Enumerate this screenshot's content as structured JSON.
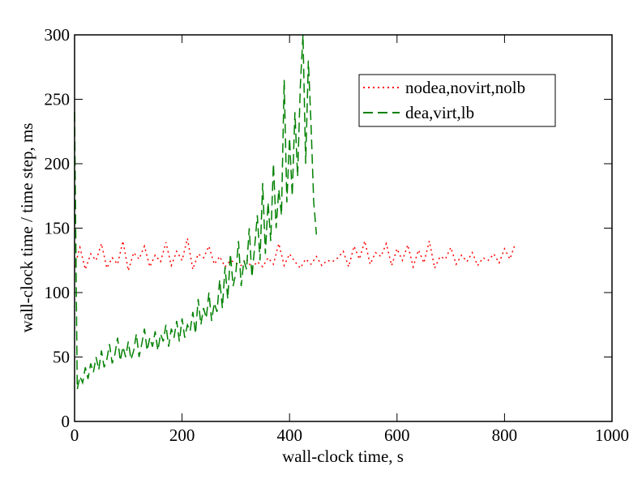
{
  "chart_data": {
    "type": "line",
    "xlabel": "wall-clock time, s",
    "ylabel": "wall-clock time / time step, ms",
    "xlim": [
      0,
      1000
    ],
    "xticks": [
      0,
      200,
      400,
      600,
      800,
      1000
    ],
    "ylim": [
      0,
      300
    ],
    "yticks": [
      0,
      50,
      100,
      150,
      200,
      250,
      300
    ],
    "legend": "upper right",
    "series": [
      {
        "name": "nodea,novirt,nolb",
        "color": "#ff0000",
        "dash": "dotted",
        "x": [
          0,
          10,
          20,
          30,
          40,
          50,
          60,
          70,
          80,
          90,
          100,
          110,
          120,
          130,
          140,
          150,
          160,
          170,
          180,
          190,
          200,
          210,
          220,
          230,
          240,
          250,
          260,
          270,
          280,
          290,
          300,
          310,
          320,
          330,
          340,
          350,
          360,
          370,
          380,
          390,
          400,
          410,
          420,
          430,
          440,
          450,
          460,
          470,
          480,
          490,
          500,
          510,
          520,
          530,
          540,
          550,
          560,
          570,
          580,
          590,
          600,
          610,
          620,
          630,
          640,
          650,
          660,
          670,
          680,
          690,
          700,
          710,
          720,
          730,
          740,
          750,
          760,
          770,
          780,
          790,
          800,
          810,
          820
        ],
        "values": [
          120,
          135,
          118,
          130,
          125,
          138,
          119,
          127,
          122,
          140,
          117,
          131,
          126,
          136,
          120,
          129,
          124,
          139,
          121,
          132,
          125,
          142,
          118,
          130,
          127,
          136,
          122,
          128,
          120,
          125,
          123,
          121,
          126,
          119,
          124,
          120,
          127,
          122,
          138,
          121,
          130,
          124,
          119,
          126,
          122,
          128,
          121,
          125,
          124,
          127,
          132,
          120,
          136,
          126,
          140,
          122,
          131,
          128,
          138,
          121,
          134,
          125,
          137,
          120,
          133,
          123,
          140,
          119,
          128,
          126,
          135,
          122,
          129,
          124,
          131,
          121,
          127,
          125,
          130,
          123,
          134,
          126,
          138
        ]
      },
      {
        "name": "dea,virt,lb",
        "color": "#008000",
        "dash": "dashed",
        "x": [
          0,
          5,
          10,
          15,
          20,
          25,
          30,
          35,
          40,
          45,
          50,
          55,
          60,
          65,
          70,
          75,
          80,
          85,
          90,
          95,
          100,
          105,
          110,
          115,
          120,
          125,
          130,
          135,
          140,
          145,
          150,
          155,
          160,
          165,
          170,
          175,
          180,
          185,
          190,
          195,
          200,
          205,
          210,
          215,
          220,
          225,
          230,
          235,
          240,
          245,
          250,
          255,
          260,
          265,
          270,
          275,
          280,
          285,
          290,
          295,
          300,
          305,
          310,
          315,
          320,
          325,
          330,
          335,
          340,
          345,
          350,
          355,
          360,
          365,
          370,
          375,
          380,
          385,
          390,
          395,
          400,
          405,
          410,
          415,
          420,
          425,
          430,
          435,
          440,
          445,
          450
        ],
        "values": [
          240,
          25,
          35,
          30,
          42,
          33,
          45,
          38,
          50,
          40,
          55,
          42,
          48,
          60,
          45,
          52,
          65,
          47,
          58,
          50,
          62,
          48,
          55,
          68,
          50,
          60,
          72,
          55,
          65,
          58,
          70,
          55,
          68,
          62,
          75,
          58,
          72,
          65,
          78,
          62,
          80,
          65,
          75,
          70,
          85,
          68,
          95,
          75,
          88,
          80,
          100,
          78,
          92,
          85,
          110,
          88,
          120,
          95,
          130,
          105,
          115,
          140,
          105,
          125,
          118,
          150,
          112,
          135,
          160,
          125,
          185,
          130,
          170,
          140,
          200,
          150,
          180,
          160,
          265,
          170,
          220,
          175,
          240,
          190,
          260,
          300,
          200,
          280,
          230,
          170,
          145
        ]
      }
    ]
  }
}
